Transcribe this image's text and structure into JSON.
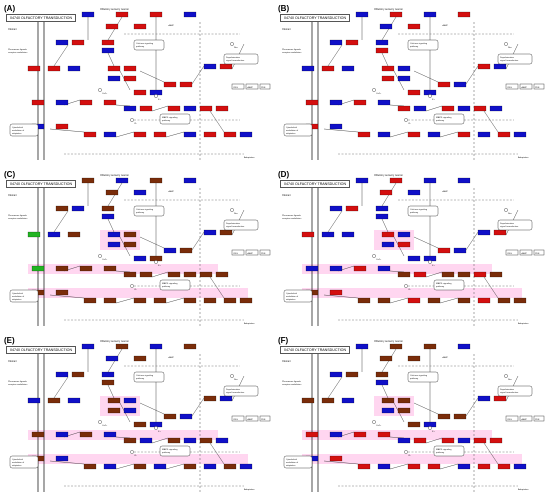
{
  "panels": [
    {
      "label": "(A)",
      "title": "04740 OLFACTORY TRANSDUCTION",
      "scheme": "A"
    },
    {
      "label": "(B)",
      "title": "04740 OLFACTORY TRANSDUCTION",
      "scheme": "B"
    },
    {
      "label": "(C)",
      "title": "04740 OLFACTORY TRANSDUCTION",
      "scheme": "C"
    },
    {
      "label": "(D)",
      "title": "04740 OLFACTORY TRANSDUCTION",
      "scheme": "D"
    },
    {
      "label": "(E)",
      "title": "04740 OLFACTORY TRANSDUCTION",
      "scheme": "E"
    },
    {
      "label": "(F)",
      "title": "04740 OLFACTORY TRANSDUCTION",
      "scheme": "F"
    }
  ],
  "diagram_labels": {
    "cell": "Olfactory sensory neuron",
    "ligand": "Odorant",
    "pheromone": "Pheromone ligands\nreceptor modulators",
    "camp": "cAMP",
    "calmodulin": "Calcium signaling\npathway",
    "depolarization": "Depolarization\nsignal transduction",
    "mapk": "MAPK signaling\npathway",
    "out1": "CNG",
    "out2": "cAMP",
    "out3": "PDE",
    "ca": "Ca2+",
    "cl": "Cl-",
    "na": "Na+",
    "k": "K+",
    "gmp": "cGMP",
    "recovery": "Cytoskeletal\nmodulation of\nadaptation",
    "adapt": "Adaptation"
  },
  "colors": {
    "red": "#d40f0f",
    "blue": "#1010c8",
    "brown": "#7a2d0a",
    "green": "#22b422",
    "pink": "#ffd6f0",
    "line": "#222222",
    "dash": "#555555"
  }
}
